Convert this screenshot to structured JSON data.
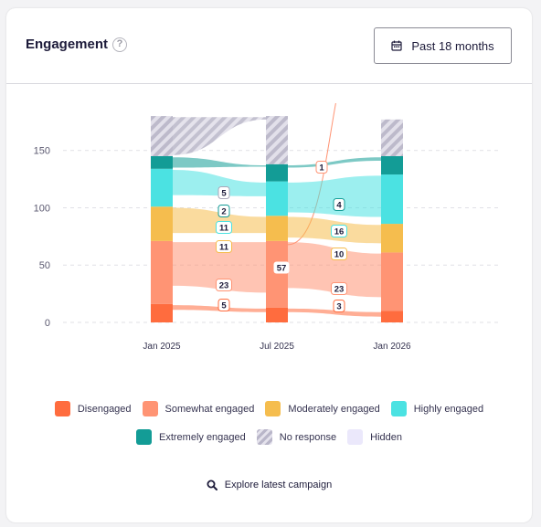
{
  "header": {
    "title": "Engagement",
    "help_icon": "question-mark-icon",
    "range_label": "Past 18 months",
    "range_icon": "calendar-icon"
  },
  "chart_data": {
    "type": "sankey-stacked-bar",
    "title": "",
    "xlabel": "",
    "ylabel": "",
    "ylim": [
      0,
      190
    ],
    "yticks": [
      "0",
      "50",
      "100",
      "150"
    ],
    "grid": true,
    "legend_position": "bottom",
    "categories": [
      "Jan 2025",
      "Jul 2025",
      "Jan 2026"
    ],
    "series": [
      {
        "name": "Disengaged",
        "color": "#ff6c3e",
        "values": [
          16,
          13,
          10
        ]
      },
      {
        "name": "Somewhat engaged",
        "color": "#ff9474",
        "values": [
          55,
          58,
          51
        ]
      },
      {
        "name": "Moderately engaged",
        "color": "#f5bd4e",
        "values": [
          30,
          22,
          25
        ]
      },
      {
        "name": "Highly engaged",
        "color": "#4be2e2",
        "values": [
          33,
          30,
          43
        ]
      },
      {
        "name": "Extremely engaged",
        "color": "#139c96",
        "values": [
          11,
          15,
          16
        ]
      },
      {
        "name": "No response",
        "color": "#bfbccc",
        "values": [
          35,
          42,
          32
        ]
      }
    ],
    "flows": [
      {
        "from": "Jan 2025",
        "to": "Jul 2025",
        "series": "No response",
        "value": 5
      },
      {
        "from": "Jan 2025",
        "to": "Jul 2025",
        "series": "Extremely engaged",
        "value": 2
      },
      {
        "from": "Jan 2025",
        "to": "Jul 2025",
        "series": "Highly engaged",
        "value": 11
      },
      {
        "from": "Jan 2025",
        "to": "Jul 2025",
        "series": "Moderately engaged",
        "value": 11
      },
      {
        "from": "Jan 2025",
        "to": "Jul 2025",
        "series": "Somewhat engaged",
        "value": 23
      },
      {
        "from": "Jan 2025",
        "to": "Jul 2025",
        "series": "Disengaged",
        "value": 5
      },
      {
        "from": "Jul 2025",
        "to": "Jul 2025",
        "series": "Somewhat engaged",
        "value": 57
      },
      {
        "from": "Jul 2025",
        "to": "Jan 2026",
        "series": "Somewhat engaged",
        "value": 1
      },
      {
        "from": "Jul 2025",
        "to": "Jan 2026",
        "series": "Extremely engaged",
        "value": 4
      },
      {
        "from": "Jul 2025",
        "to": "Jan 2026",
        "series": "Highly engaged",
        "value": 16
      },
      {
        "from": "Jul 2025",
        "to": "Jan 2026",
        "series": "Moderately engaged",
        "value": 10
      },
      {
        "from": "Jul 2025",
        "to": "Jan 2026",
        "series": "Somewhat engaged",
        "value": 23
      },
      {
        "from": "Jul 2025",
        "to": "Jan 2026",
        "series": "Disengaged",
        "value": 3
      }
    ]
  },
  "legend": {
    "row1": [
      {
        "label": "Disengaged",
        "color": "#ff6c3e"
      },
      {
        "label": "Somewhat engaged",
        "color": "#ff9474"
      },
      {
        "label": "Moderately engaged",
        "color": "#f5bd4e"
      },
      {
        "label": "Highly engaged",
        "color": "#4be2e2"
      }
    ],
    "row2": [
      {
        "label": "Extremely engaged",
        "color": "#139c96"
      },
      {
        "label": "No response",
        "color": "hatch"
      },
      {
        "label": "Hidden",
        "color": "#ebe8fb"
      }
    ]
  },
  "footer": {
    "explore_label": "Explore latest campaign",
    "explore_icon": "search-icon"
  }
}
